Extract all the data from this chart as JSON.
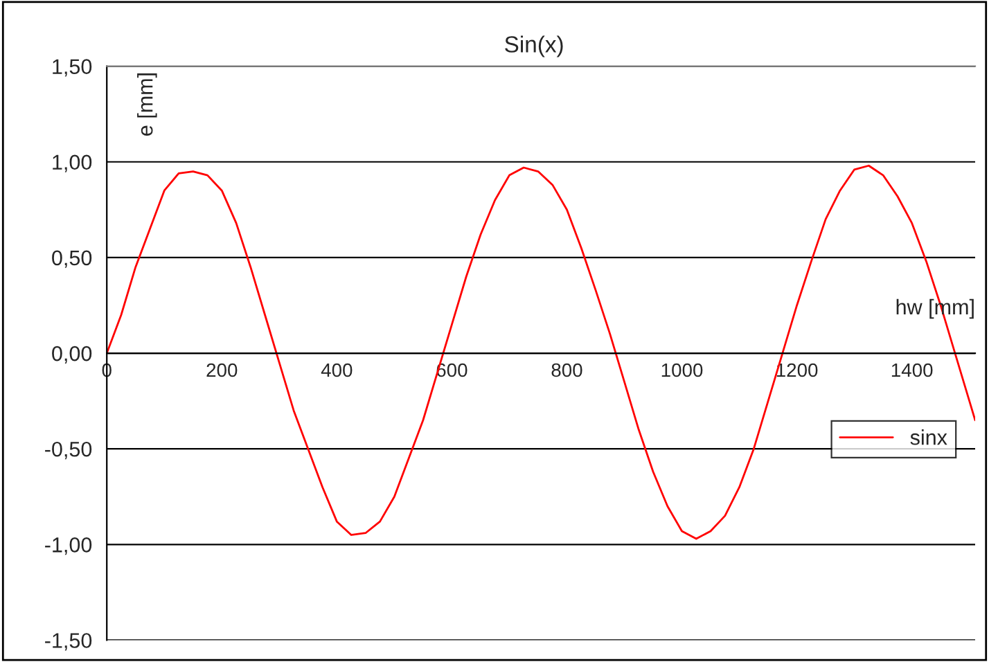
{
  "chart_data": {
    "type": "line",
    "title": "Sin(x)",
    "xlabel": "hw [mm]",
    "ylabel": "e [mm]",
    "x": [
      0,
      25,
      50,
      75,
      100,
      125,
      150,
      175,
      200,
      225,
      250,
      275,
      300,
      325,
      350,
      375,
      400,
      425,
      450,
      475,
      500,
      525,
      550,
      575,
      600,
      625,
      650,
      675,
      700,
      725,
      750,
      775,
      800,
      825,
      850,
      875,
      900,
      925,
      950,
      975,
      1000,
      1025,
      1050,
      1075,
      1100,
      1125,
      1150,
      1175,
      1200,
      1225,
      1250,
      1275,
      1300,
      1325,
      1350,
      1375,
      1400,
      1425,
      1450,
      1475,
      1500,
      1510
    ],
    "series": [
      {
        "name": "sinx",
        "color": "#ff0000",
        "values": [
          0,
          0.2,
          0.45,
          0.65,
          0.85,
          0.94,
          0.95,
          0.93,
          0.85,
          0.68,
          0.45,
          0.2,
          -0.05,
          -0.3,
          -0.5,
          -0.7,
          -0.88,
          -0.95,
          -0.94,
          -0.88,
          -0.75,
          -0.55,
          -0.35,
          -0.1,
          0.15,
          0.4,
          0.62,
          0.8,
          0.93,
          0.97,
          0.95,
          0.88,
          0.75,
          0.55,
          0.33,
          0.1,
          -0.15,
          -0.4,
          -0.62,
          -0.8,
          -0.93,
          -0.97,
          -0.93,
          -0.85,
          -0.7,
          -0.5,
          -0.25,
          0.0,
          0.25,
          0.48,
          0.7,
          0.85,
          0.96,
          0.98,
          0.93,
          0.82,
          0.68,
          0.48,
          0.25,
          0.0,
          -0.25,
          -0.35
        ]
      }
    ],
    "xlim": [
      0,
      1510
    ],
    "xticks": [
      0,
      200,
      400,
      600,
      800,
      1000,
      1200,
      1400
    ],
    "ylim": [
      -1.5,
      1.5
    ],
    "yticks": [
      {
        "value": -1.5,
        "label": "-1,50"
      },
      {
        "value": -1.0,
        "label": "-1,00"
      },
      {
        "value": -0.5,
        "label": "-0,50"
      },
      {
        "value": 0,
        "label": "0,00"
      },
      {
        "value": 0.5,
        "label": "0,50"
      },
      {
        "value": 1.0,
        "label": "1,00"
      },
      {
        "value": 1.5,
        "label": "1,50"
      }
    ],
    "grid": "y",
    "legend": "right",
    "marker": "none",
    "line_style": "solid"
  }
}
